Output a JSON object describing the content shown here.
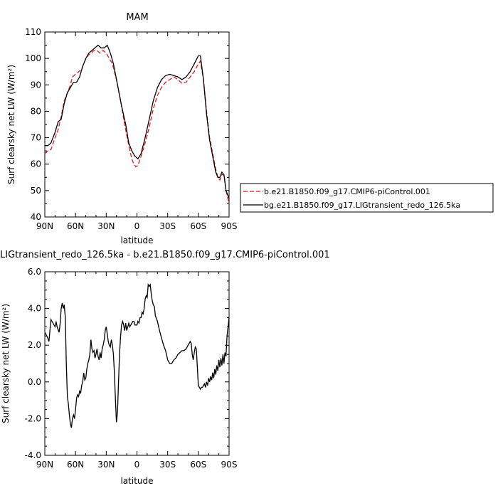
{
  "chart_data": [
    {
      "type": "line",
      "title": "MAM",
      "xlabel": "latitude",
      "ylabel": "Surf clearsky net LW (W/m²)",
      "ylim": [
        40,
        110
      ],
      "yticks": [
        "40",
        "50",
        "60",
        "70",
        "80",
        "90",
        "100",
        "110"
      ],
      "xticks": [
        "90N",
        "60N",
        "30N",
        "0",
        "30S",
        "60S",
        "90S"
      ],
      "x_values": [
        90,
        60,
        30,
        0,
        -30,
        -60,
        -90
      ],
      "legend_position": "right",
      "series": [
        {
          "name": "b.e21.B1850.f09_g17.CMIP6-piControl.001",
          "color": "#e41a1c",
          "dash": "dashed",
          "points": [
            [
              90,
              64
            ],
            [
              87,
              65
            ],
            [
              84,
              65.5
            ],
            [
              80,
              70
            ],
            [
              77,
              73
            ],
            [
              74,
              78
            ],
            [
              71,
              84
            ],
            [
              68,
              87
            ],
            [
              65,
              90
            ],
            [
              63,
              93
            ],
            [
              60,
              94
            ],
            [
              57,
              95
            ],
            [
              54,
              96
            ],
            [
              51,
              99
            ],
            [
              48,
              101
            ],
            [
              45,
              102
            ],
            [
              42,
              103
            ],
            [
              39,
              103
            ],
            [
              36,
              102
            ],
            [
              33,
              103
            ],
            [
              30,
              102
            ],
            [
              27,
              100
            ],
            [
              24,
              98
            ],
            [
              20,
              92
            ],
            [
              16,
              84
            ],
            [
              12,
              75
            ],
            [
              8,
              67
            ],
            [
              5,
              62
            ],
            [
              3,
              60
            ],
            [
              1,
              59
            ],
            [
              -1,
              59.5
            ],
            [
              -4,
              63
            ],
            [
              -8,
              68
            ],
            [
              -12,
              74
            ],
            [
              -16,
              81
            ],
            [
              -20,
              86
            ],
            [
              -24,
              89
            ],
            [
              -28,
              91
            ],
            [
              -32,
              92
            ],
            [
              -36,
              93
            ],
            [
              -40,
              92
            ],
            [
              -44,
              90.5
            ],
            [
              -48,
              91
            ],
            [
              -52,
              93
            ],
            [
              -56,
              95
            ],
            [
              -60,
              98
            ],
            [
              -62,
              99
            ],
            [
              -65,
              92
            ],
            [
              -68,
              80
            ],
            [
              -71,
              70
            ],
            [
              -74,
              64
            ],
            [
              -77,
              58
            ],
            [
              -79,
              55
            ],
            [
              -81,
              54
            ],
            [
              -83,
              56
            ],
            [
              -85,
              56
            ],
            [
              -87,
              50
            ],
            [
              -90,
              45
            ]
          ]
        },
        {
          "name": "bg.e21.B1850.f09_g17.LIGtransient_redo_126.5ka",
          "color": "#000000",
          "dash": "solid",
          "points": [
            [
              90,
              67
            ],
            [
              87,
              67
            ],
            [
              84,
              68
            ],
            [
              80,
              72
            ],
            [
              77,
              76
            ],
            [
              74,
              77
            ],
            [
              71,
              83
            ],
            [
              68,
              87
            ],
            [
              65,
              89
            ],
            [
              62,
              91
            ],
            [
              59,
              91
            ],
            [
              56,
              93
            ],
            [
              53,
              97
            ],
            [
              50,
              100
            ],
            [
              47,
              102
            ],
            [
              44,
              103
            ],
            [
              41,
              104
            ],
            [
              38,
              105
            ],
            [
              35,
              104
            ],
            [
              32,
              104
            ],
            [
              29,
              105
            ],
            [
              26,
              102
            ],
            [
              23,
              98
            ],
            [
              19,
              90
            ],
            [
              15,
              82
            ],
            [
              11,
              75
            ],
            [
              8,
              68
            ],
            [
              5,
              65
            ],
            [
              2,
              63
            ],
            [
              -1,
              62
            ],
            [
              -4,
              64
            ],
            [
              -8,
              70
            ],
            [
              -12,
              77
            ],
            [
              -16,
              84
            ],
            [
              -20,
              89
            ],
            [
              -24,
              92
            ],
            [
              -28,
              93.5
            ],
            [
              -32,
              94
            ],
            [
              -36,
              93.5
            ],
            [
              -40,
              93
            ],
            [
              -44,
              92
            ],
            [
              -48,
              93
            ],
            [
              -52,
              95
            ],
            [
              -56,
              98
            ],
            [
              -60,
              101
            ],
            [
              -62,
              101
            ],
            [
              -65,
              92
            ],
            [
              -68,
              79
            ],
            [
              -71,
              69
            ],
            [
              -74,
              63
            ],
            [
              -77,
              57
            ],
            [
              -79,
              55
            ],
            [
              -81,
              55
            ],
            [
              -83,
              57
            ],
            [
              -85,
              56
            ],
            [
              -87,
              50
            ],
            [
              -90,
              47
            ]
          ]
        }
      ]
    },
    {
      "type": "line",
      "title": "LIGtransient_redo_126.5ka - b.e21.B1850.f09_g17.CMIP6-piControl.001",
      "xlabel": "latitude",
      "ylabel": "Surf clearsky net LW (W/m²)",
      "ylim": [
        -4.0,
        6.0
      ],
      "yticks": [
        "-4.0",
        "-2.0",
        "0.0",
        "2.0",
        "4.0",
        "6.0"
      ],
      "xticks": [
        "90N",
        "60N",
        "30N",
        "0",
        "30S",
        "60S",
        "90S"
      ],
      "x_values": [
        90,
        60,
        30,
        0,
        -30,
        -60,
        -90
      ],
      "series": [
        {
          "color": "#000000",
          "dash": "solid",
          "points": [
            [
              90,
              2.7
            ],
            [
              88,
              2.5
            ],
            [
              86,
              2.2
            ],
            [
              84,
              3.4
            ],
            [
              82,
              3.2
            ],
            [
              80,
              3.0
            ],
            [
              79,
              3.3
            ],
            [
              78,
              3.0
            ],
            [
              76,
              2.7
            ],
            [
              75,
              3.2
            ],
            [
              74,
              4.0
            ],
            [
              73,
              4.3
            ],
            [
              72,
              4.0
            ],
            [
              71,
              4.2
            ],
            [
              70,
              3.5
            ],
            [
              69,
              1.0
            ],
            [
              68,
              -0.8
            ],
            [
              67,
              -1.2
            ],
            [
              66,
              -1.8
            ],
            [
              65,
              -2.3
            ],
            [
              64,
              -2.5
            ],
            [
              63,
              -2.0
            ],
            [
              62,
              -1.8
            ],
            [
              61,
              -2.0
            ],
            [
              60,
              -1.5
            ],
            [
              59,
              -0.9
            ],
            [
              58,
              -0.7
            ],
            [
              57,
              -0.8
            ],
            [
              56,
              -0.5
            ],
            [
              55,
              -0.6
            ],
            [
              54,
              -0.2
            ],
            [
              53,
              0.0
            ],
            [
              52,
              0.5
            ],
            [
              51,
              0.1
            ],
            [
              50,
              0.2
            ],
            [
              49,
              0.7
            ],
            [
              48,
              1.0
            ],
            [
              47,
              1.2
            ],
            [
              46,
              1.5
            ],
            [
              45,
              2.3
            ],
            [
              44,
              1.8
            ],
            [
              43,
              1.6
            ],
            [
              42,
              1.7
            ],
            [
              41,
              1.3
            ],
            [
              40,
              1.5
            ],
            [
              39,
              1.8
            ],
            [
              38,
              1.4
            ],
            [
              37,
              1.2
            ],
            [
              36,
              1.6
            ],
            [
              35,
              1.3
            ],
            [
              34,
              1.8
            ],
            [
              33,
              2.0
            ],
            [
              32,
              2.3
            ],
            [
              31,
              2.8
            ],
            [
              30,
              3.0
            ],
            [
              29,
              2.6
            ],
            [
              28,
              2.2
            ],
            [
              27,
              2.0
            ],
            [
              26,
              1.9
            ],
            [
              25,
              2.3
            ],
            [
              24,
              2.0
            ],
            [
              23,
              1.5
            ],
            [
              22,
              0.5
            ],
            [
              21,
              -1.0
            ],
            [
              20,
              -2.2
            ],
            [
              19,
              -1.6
            ],
            [
              18,
              0.0
            ],
            [
              17,
              1.5
            ],
            [
              16,
              2.5
            ],
            [
              15,
              3.1
            ],
            [
              14,
              3.3
            ],
            [
              13,
              3.1
            ],
            [
              12,
              2.8
            ],
            [
              11,
              3.2
            ],
            [
              10,
              2.8
            ],
            [
              9,
              3.0
            ],
            [
              8,
              3.2
            ],
            [
              7,
              3.0
            ],
            [
              6,
              3.1
            ],
            [
              5,
              3.2
            ],
            [
              4,
              3.3
            ],
            [
              3,
              3.3
            ],
            [
              2,
              3.1
            ],
            [
              1,
              3.1
            ],
            [
              0,
              3.1
            ],
            [
              -1,
              3.3
            ],
            [
              -2,
              3.2
            ],
            [
              -3,
              3.5
            ],
            [
              -4,
              3.5
            ],
            [
              -5,
              3.8
            ],
            [
              -6,
              3.7
            ],
            [
              -7,
              4.0
            ],
            [
              -8,
              4.5
            ],
            [
              -9,
              4.7
            ],
            [
              -10,
              4.6
            ],
            [
              -11,
              5.3
            ],
            [
              -12,
              5.2
            ],
            [
              -13,
              5.3
            ],
            [
              -14,
              4.8
            ],
            [
              -15,
              4.4
            ],
            [
              -16,
              4.2
            ],
            [
              -17,
              4.1
            ],
            [
              -18,
              3.6
            ],
            [
              -20,
              3.3
            ],
            [
              -22,
              2.8
            ],
            [
              -24,
              2.4
            ],
            [
              -26,
              2.0
            ],
            [
              -28,
              1.7
            ],
            [
              -30,
              1.2
            ],
            [
              -32,
              1.0
            ],
            [
              -34,
              1.0
            ],
            [
              -36,
              1.2
            ],
            [
              -38,
              1.3
            ],
            [
              -40,
              1.5
            ],
            [
              -42,
              1.6
            ],
            [
              -44,
              1.7
            ],
            [
              -46,
              1.7
            ],
            [
              -48,
              1.8
            ],
            [
              -50,
              2.0
            ],
            [
              -52,
              2.2
            ],
            [
              -53,
              2.1
            ],
            [
              -54,
              1.5
            ],
            [
              -55,
              1.2
            ],
            [
              -56,
              1.6
            ],
            [
              -57,
              1.9
            ],
            [
              -58,
              1.8
            ],
            [
              -59,
              0.8
            ],
            [
              -60,
              -0.2
            ],
            [
              -61,
              -0.3
            ],
            [
              -62,
              -0.4
            ],
            [
              -63,
              -0.3
            ],
            [
              -64,
              -0.3
            ],
            [
              -65,
              -0.2
            ],
            [
              -66,
              -0.1
            ],
            [
              -67,
              -0.3
            ],
            [
              -68,
              0.0
            ],
            [
              -69,
              -0.2
            ],
            [
              -70,
              0.2
            ],
            [
              -71,
              0.0
            ],
            [
              -72,
              0.3
            ],
            [
              -73,
              0.1
            ],
            [
              -74,
              0.5
            ],
            [
              -75,
              0.2
            ],
            [
              -76,
              0.7
            ],
            [
              -77,
              0.4
            ],
            [
              -78,
              0.9
            ],
            [
              -79,
              0.6
            ],
            [
              -80,
              1.2
            ],
            [
              -81,
              0.8
            ],
            [
              -82,
              1.3
            ],
            [
              -83,
              0.9
            ],
            [
              -84,
              1.5
            ],
            [
              -85,
              1.0
            ],
            [
              -86,
              1.6
            ],
            [
              -87,
              1.4
            ],
            [
              -88,
              2.5
            ],
            [
              -89,
              3.0
            ],
            [
              -90,
              3.5
            ]
          ]
        }
      ]
    }
  ]
}
